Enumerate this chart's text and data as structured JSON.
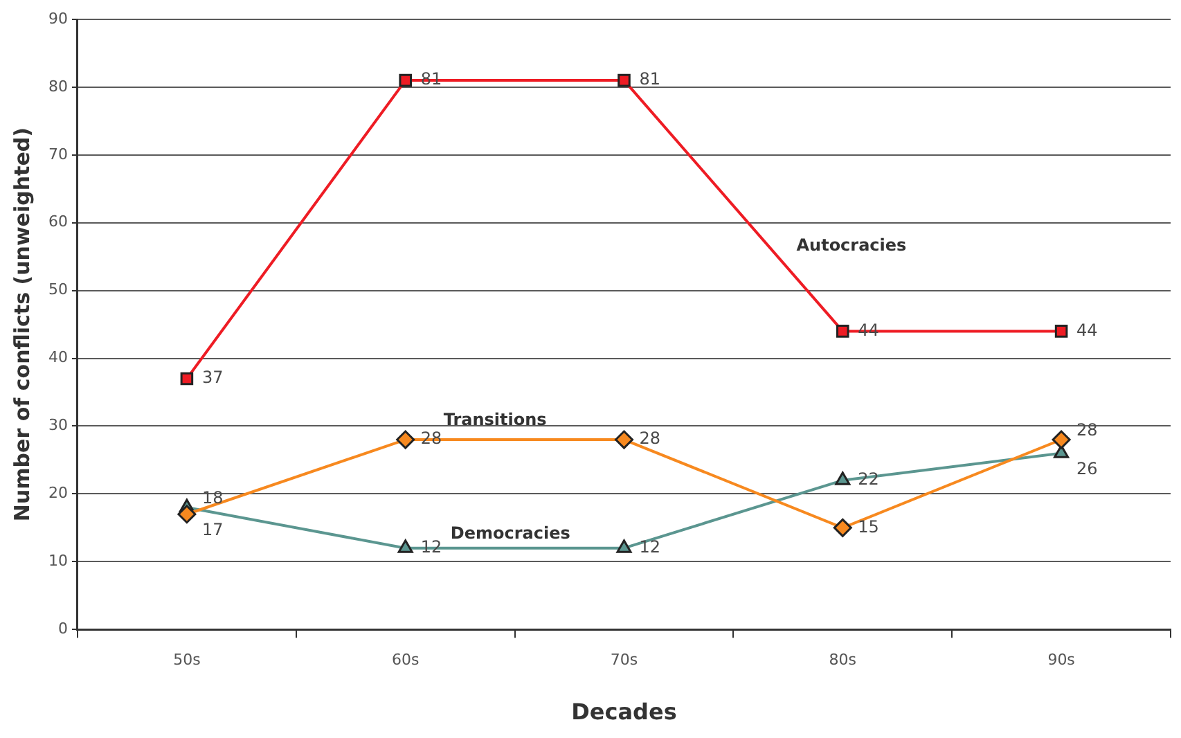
{
  "chart_data": {
    "type": "line",
    "xlabel": "Decades",
    "ylabel": "Number of conflicts (unweighted)",
    "categories": [
      "50s",
      "60s",
      "70s",
      "80s",
      "90s"
    ],
    "series": [
      {
        "name": "Autocracies",
        "color": "#ee1c24",
        "marker": "square",
        "values": [
          37,
          81,
          81,
          44,
          44
        ]
      },
      {
        "name": "Transitions",
        "color": "#f7891f",
        "marker": "diamond",
        "values": [
          17,
          28,
          28,
          15,
          28
        ]
      },
      {
        "name": "Democracies",
        "color": "#5b9690",
        "marker": "triangle",
        "values": [
          18,
          12,
          12,
          22,
          26
        ]
      }
    ],
    "ylim": [
      0,
      90
    ],
    "yticks": [
      0,
      10,
      20,
      30,
      40,
      50,
      60,
      70,
      80,
      90
    ],
    "grid": "y",
    "legend": false,
    "data_labels": true,
    "line_style": "solid"
  }
}
